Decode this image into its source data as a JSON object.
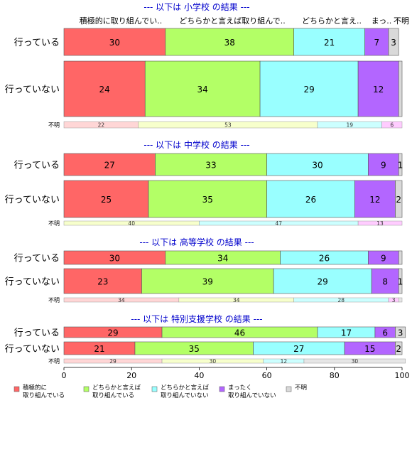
{
  "chart_data": {
    "type": "bar",
    "orientation": "horizontal",
    "stacked": true,
    "xlim": [
      0,
      100
    ],
    "x_ticks": [
      "0",
      "20",
      "40",
      "60",
      "80",
      "100"
    ],
    "column_headers": [
      "積極的に取り組んでい..",
      "どちらかと言えば取り組んで..",
      "どちらかと言え..",
      "まっ..",
      "不明"
    ],
    "legend": [
      {
        "line1": "積極的に",
        "line2": "取り組んでいる",
        "color": "#ff6666"
      },
      {
        "line1": "どちらかと言えば",
        "line2": "取り組んでいる",
        "color": "#b3ff66"
      },
      {
        "line1": "どちらかと言えば",
        "line2": "取り組んでいない",
        "color": "#99ffff"
      },
      {
        "line1": "まったく",
        "line2": "取り組んでいない",
        "color": "#b366ff"
      },
      {
        "line1": "不明",
        "line2": "",
        "color": "#d9d9d9"
      }
    ],
    "small_colors": [
      "#ffd6d6",
      "#f7ffcc",
      "#ccffff",
      "#ffccff",
      "#e6e6e6"
    ],
    "sections": [
      {
        "title": "--- 以下は 小学校 の結果 ---",
        "rows": [
          {
            "label": "行っている",
            "values": [
              30,
              38,
              21,
              7,
              3
            ],
            "labels": [
              "30",
              "38",
              "21",
              "7",
              "3"
            ]
          },
          {
            "label": "行っていない",
            "values": [
              24,
              34,
              29,
              12,
              1
            ],
            "labels": [
              "24",
              "34",
              "29",
              "12",
              ""
            ]
          }
        ],
        "unknown": {
          "label": "不明",
          "values": [
            22,
            53,
            19,
            6,
            0
          ],
          "labels": [
            "22",
            "53",
            "19",
            "6",
            ""
          ]
        }
      },
      {
        "title": "--- 以下は 中学校 の結果 ---",
        "rows": [
          {
            "label": "行っている",
            "values": [
              27,
              33,
              30,
              9,
              1
            ],
            "labels": [
              "27",
              "33",
              "30",
              "9",
              "1"
            ]
          },
          {
            "label": "行っていない",
            "values": [
              25,
              35,
              26,
              12,
              2
            ],
            "labels": [
              "25",
              "35",
              "26",
              "12",
              "2"
            ]
          }
        ],
        "unknown": {
          "label": "不明",
          "values": [
            0,
            40,
            47,
            13,
            0
          ],
          "labels": [
            "",
            "40",
            "47",
            "13",
            ""
          ]
        }
      },
      {
        "title": "--- 以下は 高等学校 の結果 ---",
        "rows": [
          {
            "label": "行っている",
            "values": [
              30,
              34,
              26,
              9,
              1
            ],
            "labels": [
              "30",
              "34",
              "26",
              "9",
              ""
            ]
          },
          {
            "label": "行っていない",
            "values": [
              23,
              39,
              29,
              8,
              1
            ],
            "labels": [
              "23",
              "39",
              "29",
              "8",
              "1"
            ]
          }
        ],
        "unknown": {
          "label": "不明",
          "values": [
            34,
            34,
            28,
            3,
            1
          ],
          "labels": [
            "34",
            "34",
            "28",
            "3",
            ""
          ]
        }
      },
      {
        "title": "--- 以下は 特別支援学校 の結果 ---",
        "rows": [
          {
            "label": "行っている",
            "values": [
              29,
              46,
              17,
              6,
              3
            ],
            "labels": [
              "29",
              "46",
              "17",
              "6",
              "3"
            ]
          },
          {
            "label": "行っていない",
            "values": [
              21,
              35,
              27,
              15,
              2
            ],
            "labels": [
              "21",
              "35",
              "27",
              "15",
              "2"
            ]
          }
        ],
        "unknown": {
          "label": "不明",
          "values": [
            29,
            30,
            12,
            0,
            30
          ],
          "labels": [
            "29",
            "30",
            "12",
            "",
            "30"
          ]
        }
      }
    ]
  }
}
